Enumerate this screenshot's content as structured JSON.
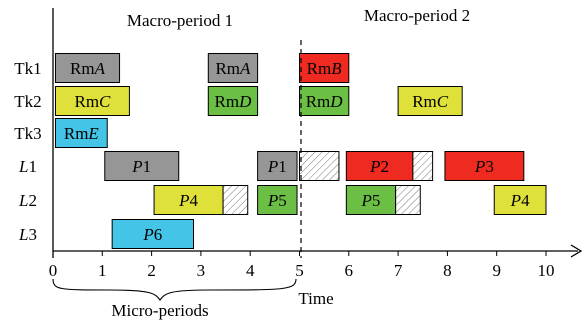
{
  "periods": {
    "macro1": "Macro-period 1",
    "macro2": "Macro-period 2",
    "micro": "Micro-periods"
  },
  "axis": {
    "title": "Time",
    "ticks": [
      "0",
      "1",
      "2",
      "3",
      "4",
      "5",
      "6",
      "7",
      "8",
      "9",
      "10"
    ]
  },
  "rows": [
    {
      "id": "tk1",
      "label": "Tk1",
      "italic": false
    },
    {
      "id": "tk2",
      "label": "Tk2",
      "italic": false
    },
    {
      "id": "tk3",
      "label": "Tk3",
      "italic": false
    },
    {
      "id": "l1",
      "label": "L1",
      "italic": true
    },
    {
      "id": "l2",
      "label": "L2",
      "italic": true
    },
    {
      "id": "l3",
      "label": "L3",
      "italic": true
    }
  ],
  "colors": {
    "gray": "#969696",
    "yellow": "#dfe13a",
    "green": "#6cbf45",
    "red": "#ef2b21",
    "cyan": "#44c4e6",
    "hatch_bg": "#ffffff"
  },
  "blocks": [
    {
      "row": 0,
      "start": 0.05,
      "end": 1.35,
      "color": "gray",
      "pre": "Rm",
      "it": "A"
    },
    {
      "row": 0,
      "start": 3.15,
      "end": 4.15,
      "color": "gray",
      "pre": "Rm",
      "it": "A"
    },
    {
      "row": 0,
      "start": 5.0,
      "end": 6.0,
      "color": "red",
      "pre": "Rm",
      "it": "B"
    },
    {
      "row": 1,
      "start": 0.05,
      "end": 1.55,
      "color": "yellow",
      "pre": "Rm",
      "it": "C"
    },
    {
      "row": 1,
      "start": 3.15,
      "end": 4.15,
      "color": "green",
      "pre": "Rm",
      "it": "D"
    },
    {
      "row": 1,
      "start": 5.0,
      "end": 6.0,
      "color": "green",
      "pre": "Rm",
      "it": "D"
    },
    {
      "row": 1,
      "start": 7.0,
      "end": 8.3,
      "color": "yellow",
      "pre": "Rm",
      "it": "C"
    },
    {
      "row": 2,
      "start": 0.05,
      "end": 1.1,
      "color": "cyan",
      "pre": "Rm",
      "it": "E"
    },
    {
      "row": 3,
      "start": 1.05,
      "end": 2.55,
      "color": "gray",
      "pre": "",
      "it": "P",
      "post": "1"
    },
    {
      "row": 3,
      "start": 4.15,
      "end": 4.95,
      "color": "gray",
      "pre": "",
      "it": "P",
      "post": "1"
    },
    {
      "row": 3,
      "start": 5.95,
      "end": 7.3,
      "color": "red",
      "pre": "",
      "it": "P",
      "post": "2"
    },
    {
      "row": 3,
      "start": 7.95,
      "end": 9.55,
      "color": "red",
      "pre": "",
      "it": "P",
      "post": "3"
    },
    {
      "row": 4,
      "start": 2.05,
      "end": 3.45,
      "color": "yellow",
      "pre": "",
      "it": "P",
      "post": "4"
    },
    {
      "row": 4,
      "start": 4.15,
      "end": 4.95,
      "color": "green",
      "pre": "",
      "it": "P",
      "post": "5"
    },
    {
      "row": 4,
      "start": 5.95,
      "end": 6.95,
      "color": "green",
      "pre": "",
      "it": "P",
      "post": "5"
    },
    {
      "row": 4,
      "start": 8.95,
      "end": 10.0,
      "color": "yellow",
      "pre": "",
      "it": "P",
      "post": "4"
    },
    {
      "row": 5,
      "start": 1.2,
      "end": 2.85,
      "color": "cyan",
      "pre": "",
      "it": "P",
      "post": "6"
    }
  ],
  "hatched": [
    {
      "row": 3,
      "start": 5.0,
      "end": 5.8
    },
    {
      "row": 3,
      "start": 7.3,
      "end": 7.7
    },
    {
      "row": 4,
      "start": 3.45,
      "end": 3.95
    },
    {
      "row": 4,
      "start": 6.95,
      "end": 7.45
    }
  ]
}
